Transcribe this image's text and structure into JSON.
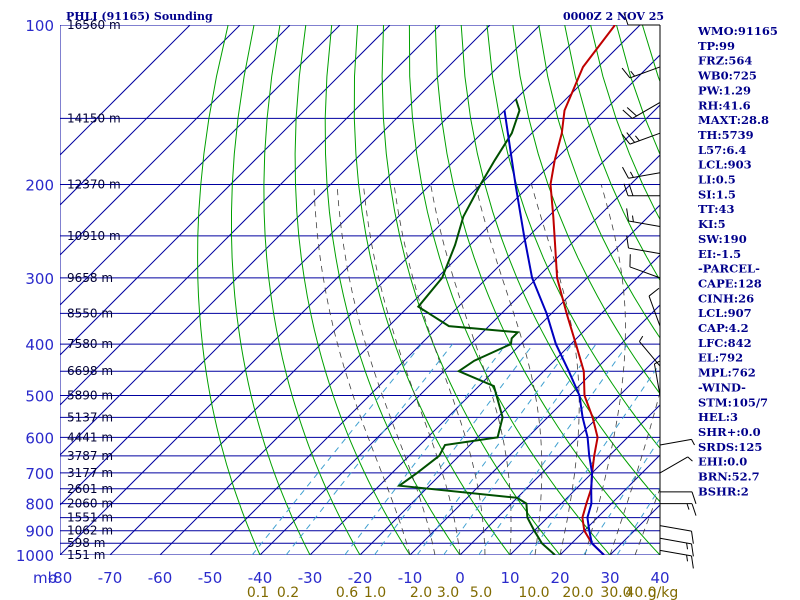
{
  "header": {
    "station": "PHLI (91165) Sounding",
    "datetime": "0000Z  2 NOV 25"
  },
  "colors": {
    "grid": "#0000a0",
    "dry_adiabat": "#00a000",
    "moist_adiabat": "#404040",
    "mixing_ratio": "#40a0d0",
    "temperature": "#c00000",
    "dewpoint": "#005000",
    "parcel": "#0000c0",
    "wind": "#000000",
    "side_text": "#00008b"
  },
  "side_panel": [
    "WMO:91165",
    "TP:99",
    "FRZ:564",
    "WB0:725",
    "PW:1.29",
    "RH:41.6",
    "MAXT:28.8",
    "TH:5739",
    "L57:6.4",
    "LCL:903",
    "LI:0.5",
    "SI:1.5",
    "TT:43",
    "KI:5",
    "SW:190",
    "EI:-1.5",
    "-PARCEL-",
    "CAPE:128",
    "CINH:26",
    "LCL:907",
    "CAP:4.2",
    "LFC:842",
    "EL:792",
    "MPL:762",
    "-WIND-",
    "STM:105/7",
    "HEL:3",
    "SHR+:0.0",
    "SRDS:125",
    "EHI:0.0",
    "BRN:52.7",
    "BSHR:2"
  ],
  "chart_data": {
    "type": "line",
    "title": "PHLI (91165) Sounding",
    "xlabel": "",
    "ylabel": "mb",
    "x_ticks": [
      -80,
      -70,
      -60,
      -50,
      -40,
      -30,
      -20,
      -10,
      0,
      10,
      20,
      30,
      40
    ],
    "x_tick_labels": [
      "-80",
      "-70",
      "-60",
      "-50",
      "-40",
      "-30",
      "-20",
      "-10",
      "0",
      "10",
      "20",
      "30",
      "40"
    ],
    "xlim": [
      -80,
      40
    ],
    "ylim": [
      1000,
      100
    ],
    "y_scale": "log",
    "pressure_ticks": [
      100,
      200,
      300,
      400,
      500,
      600,
      700,
      800,
      900,
      1000
    ],
    "pressure_tick_labels": [
      "100",
      "200",
      "300",
      "400",
      "500",
      "600",
      "700",
      "800",
      "900",
      "1000"
    ],
    "pressure_unit_label": "mb",
    "isobars": [
      100,
      150,
      200,
      250,
      300,
      350,
      400,
      450,
      500,
      550,
      600,
      650,
      700,
      750,
      800,
      850,
      900,
      950,
      1000
    ],
    "height_labels": [
      {
        "p": 100,
        "label": "16560 m"
      },
      {
        "p": 150,
        "label": "14150 m"
      },
      {
        "p": 200,
        "label": "12370 m"
      },
      {
        "p": 250,
        "label": "10910 m"
      },
      {
        "p": 300,
        "label": "9658 m"
      },
      {
        "p": 350,
        "label": "8550 m"
      },
      {
        "p": 400,
        "label": "7580 m"
      },
      {
        "p": 450,
        "label": "6698 m"
      },
      {
        "p": 500,
        "label": "5890 m"
      },
      {
        "p": 550,
        "label": "5137 m"
      },
      {
        "p": 600,
        "label": "4441 m"
      },
      {
        "p": 650,
        "label": "3787 m"
      },
      {
        "p": 700,
        "label": "3177 m"
      },
      {
        "p": 750,
        "label": "2601 m"
      },
      {
        "p": 800,
        "label": "2060 m"
      },
      {
        "p": 850,
        "label": "1551 m"
      },
      {
        "p": 900,
        "label": "1062 m"
      },
      {
        "p": 950,
        "label": "598 m"
      },
      {
        "p": 1000,
        "label": "151 m"
      }
    ],
    "mixing_ratio_lines": [
      0.1,
      0.2,
      0.6,
      1.0,
      2.0,
      3.0,
      5.0,
      10.0,
      20.0,
      30.0
    ],
    "mixing_ratio_labels": [
      "0.1",
      "0.2",
      "0.6",
      "1.0",
      "2.0",
      "3.0",
      "5.0",
      "10.0",
      "20.0",
      "30.0",
      "40.0",
      "g/kg"
    ],
    "series": [
      {
        "name": "",
        "kind": "temperature",
        "points": [
          [
            100,
            -75
          ],
          [
            120,
            -73
          ],
          [
            145,
            -68
          ],
          [
            160,
            -64
          ],
          [
            180,
            -60
          ],
          [
            200,
            -56
          ],
          [
            230,
            -49
          ],
          [
            260,
            -43
          ],
          [
            300,
            -36
          ],
          [
            350,
            -27
          ],
          [
            400,
            -19
          ],
          [
            450,
            -12
          ],
          [
            500,
            -7
          ],
          [
            550,
            -1
          ],
          [
            600,
            4
          ],
          [
            650,
            7
          ],
          [
            700,
            10
          ],
          [
            750,
            13
          ],
          [
            800,
            15
          ],
          [
            850,
            17
          ],
          [
            900,
            20
          ],
          [
            950,
            24
          ],
          [
            1000,
            28.8
          ]
        ]
      },
      {
        "name": "",
        "kind": "dewpoint",
        "points": [
          [
            138,
            -80
          ],
          [
            145,
            -77
          ],
          [
            160,
            -74
          ],
          [
            180,
            -72
          ],
          [
            200,
            -70
          ],
          [
            230,
            -67
          ],
          [
            260,
            -63
          ],
          [
            300,
            -59
          ],
          [
            340,
            -58
          ],
          [
            370,
            -48
          ],
          [
            380,
            -33
          ],
          [
            390,
            -33
          ],
          [
            400,
            -32
          ],
          [
            430,
            -36
          ],
          [
            450,
            -37
          ],
          [
            480,
            -27
          ],
          [
            550,
            -19
          ],
          [
            600,
            -16
          ],
          [
            620,
            -25
          ],
          [
            650,
            -24
          ],
          [
            700,
            -25
          ],
          [
            740,
            -26
          ],
          [
            780,
            0
          ],
          [
            800,
            3
          ],
          [
            850,
            6
          ],
          [
            900,
            10
          ],
          [
            950,
            14
          ],
          [
            1000,
            19
          ]
        ]
      },
      {
        "name": "",
        "kind": "parcel",
        "points": [
          [
            145,
            -80
          ],
          [
            200,
            -63
          ],
          [
            250,
            -51
          ],
          [
            300,
            -41
          ],
          [
            350,
            -31
          ],
          [
            400,
            -23
          ],
          [
            450,
            -15
          ],
          [
            500,
            -8
          ],
          [
            550,
            -3
          ],
          [
            600,
            2
          ],
          [
            650,
            6
          ],
          [
            700,
            10
          ],
          [
            750,
            13
          ],
          [
            800,
            16
          ],
          [
            850,
            18
          ],
          [
            900,
            21
          ],
          [
            950,
            24
          ],
          [
            1000,
            28.8
          ]
        ]
      }
    ],
    "wind_barbs": [
      {
        "p": 100,
        "dir": 270,
        "spd": 10
      },
      {
        "p": 120,
        "dir": 250,
        "spd": 15
      },
      {
        "p": 140,
        "dir": 240,
        "spd": 20
      },
      {
        "p": 160,
        "dir": 250,
        "spd": 25
      },
      {
        "p": 190,
        "dir": 260,
        "spd": 15
      },
      {
        "p": 210,
        "dir": 270,
        "spd": 20
      },
      {
        "p": 240,
        "dir": 280,
        "spd": 15
      },
      {
        "p": 270,
        "dir": 280,
        "spd": 10
      },
      {
        "p": 300,
        "dir": 290,
        "spd": 10
      },
      {
        "p": 370,
        "dir": 340,
        "spd": 10
      },
      {
        "p": 440,
        "dir": 320,
        "spd": 5
      },
      {
        "p": 500,
        "dir": 350,
        "spd": 5
      },
      {
        "p": 620,
        "dir": 80,
        "spd": 5
      },
      {
        "p": 700,
        "dir": 60,
        "spd": 5
      },
      {
        "p": 760,
        "dir": 90,
        "spd": 10
      },
      {
        "p": 800,
        "dir": 90,
        "spd": 15
      },
      {
        "p": 880,
        "dir": 100,
        "spd": 10
      },
      {
        "p": 930,
        "dir": 100,
        "spd": 15
      },
      {
        "p": 980,
        "dir": 100,
        "spd": 15
      }
    ]
  }
}
